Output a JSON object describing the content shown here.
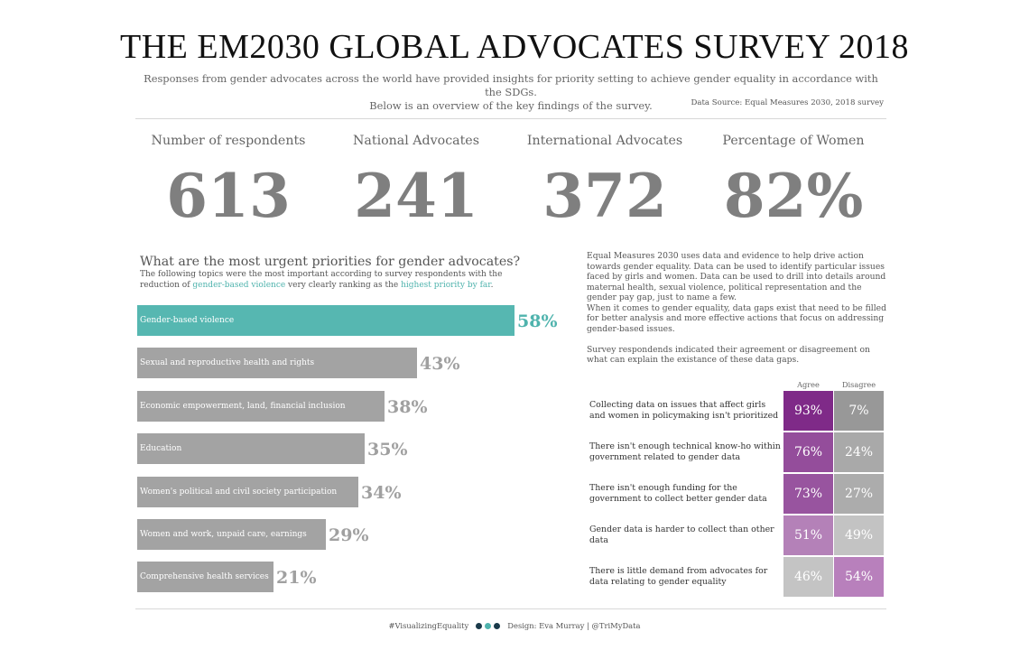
{
  "title": "THE EM2030 GLOBAL ADVOCATES SURVEY 2018",
  "subtitle_line1": "Responses from gender advocates across the world have provided insights for priority setting to achieve gender equality in accordance with the SDGs.",
  "subtitle_line2": "Below is an overview of the key findings of the survey.",
  "source": "Data Source: Equal Measures 2030, 2018 survey",
  "kpis": [
    {
      "label": "Number of respondents",
      "value": "613"
    },
    {
      "label": "National Advocates",
      "value": "241"
    },
    {
      "label": "International Advocates",
      "value": "372"
    },
    {
      "label": "Percentage of Women",
      "value": "82%"
    }
  ],
  "priorities": {
    "title": "What are the most urgent priorities for gender advocates?",
    "sub_part1": "The following topics were the most important according to survey respondents with the reduction of ",
    "sub_hl1": "gender-based violence",
    "sub_part2": " very clearly ranking as the ",
    "sub_hl2": "highest priority by far",
    "sub_part3": "."
  },
  "description": {
    "p1": "Equal Measures 2030 uses data and evidence to help drive action towards gender equality. Data can be used to identify particular issues faced by girls and women. Data can be used to drill into details around maternal health, sexual violence, political representation and the gender pay gap, just to name a few.",
    "p2": "When it comes to gender equality, data gaps exist that need to be filled for better analysis and more effective actions that focus on addressing gender-based issues.",
    "p3": "Survey respondends indicated their agreement or disagreement on what can explain the existance of these data gaps."
  },
  "colors": {
    "highlight": "#56b7b1",
    "highlight_text": "#4fb3ad",
    "bar_gray": "#a3a3a3",
    "value_gray": "#a0a0a0",
    "kpi_gray": "#7f7f7f"
  },
  "chart_data": [
    {
      "type": "bar",
      "orientation": "horizontal",
      "title": "What are the most urgent priorities for gender advocates?",
      "categories": [
        "Gender-based violence",
        "Sexual and reproductive health and rights",
        "Economic empowerment, land, financial inclusion",
        "Education",
        "Women's political and civil society participation",
        "Women and work, unpaid care, earnings",
        "Comprehensive health services"
      ],
      "values": [
        58,
        43,
        38,
        35,
        34,
        29,
        21
      ],
      "value_labels": [
        "58%",
        "43%",
        "38%",
        "35%",
        "34%",
        "29%",
        "21%"
      ],
      "highlighted_index": 0,
      "xlim": [
        0,
        58
      ]
    },
    {
      "type": "heatmap",
      "columns": [
        "Agree",
        "Disagree"
      ],
      "rows": [
        "Collecting data on issues that affect girls and women in policymaking isn't prioritized",
        "There isn't enough technical know-ho within government related to gender data",
        "There isn't enough funding for the government to collect better gender data",
        "Gender data is harder to collect than other data",
        "There is little demand from advocates for data relating to gender equality"
      ],
      "values": [
        [
          93,
          7
        ],
        [
          76,
          24
        ],
        [
          73,
          27
        ],
        [
          51,
          49
        ],
        [
          46,
          54
        ]
      ],
      "value_labels": [
        [
          "93%",
          "7%"
        ],
        [
          "76%",
          "24%"
        ],
        [
          "73%",
          "27%"
        ],
        [
          "51%",
          "49%"
        ],
        [
          "46%",
          "54%"
        ]
      ]
    }
  ],
  "footer": {
    "hashtag": "#VisualizingEquality",
    "credit": "Design: Eva Murray | @TriMyData",
    "dot_colors": [
      "#1a3a4a",
      "#4fb3ad",
      "#1a3a4a"
    ]
  }
}
